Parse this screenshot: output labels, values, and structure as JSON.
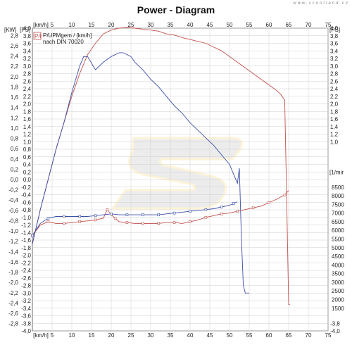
{
  "title": "Power - Diagram",
  "watermark": "www.scootland.cz",
  "chart_data": {
    "type": "line",
    "title": "Power - Diagram",
    "xlabel": "[km/h]",
    "x_unit_top": "[km/h]",
    "y_left_unit_kw": "[KW]",
    "y_left_unit_ps": "[PS]",
    "y_right_unit_ps": "[PS]",
    "y_right_unit_rpm": "[1/mir",
    "legend": [
      "P/UPMgem / [km/h]",
      "nach DIN 70020"
    ],
    "legend_badge": "P4",
    "xlim": [
      0,
      75
    ],
    "x_ticks": [
      5,
      10,
      15,
      20,
      25,
      30,
      35,
      40,
      45,
      50,
      55,
      60,
      65,
      70,
      75
    ],
    "y_ps_lim": [
      -4.0,
      4.0
    ],
    "y_ps_ticks": [
      "4,0",
      "3,8",
      "3,6",
      "3,4",
      "3,2",
      "3,0",
      "2,8",
      "2,6",
      "2,4",
      "2,2",
      "2,0",
      "1,8",
      "1,6",
      "1,4",
      "1,2",
      "1,0",
      "0,8",
      "0,6",
      "0,4",
      "0,2",
      "0,0",
      "-0,2",
      "-0,4",
      "-0,6",
      "-0,8",
      "-1,0",
      "-1,2",
      "-1,4",
      "-1,6",
      "-1,8",
      "-2,0",
      "-2,2",
      "-2,4",
      "-2,6",
      "-2,8",
      "-3,0",
      "-3,2",
      "-3,4",
      "-3,6",
      "-3,8",
      "-4,0"
    ],
    "y_kw_ticks": [
      "2,8",
      "2,6",
      "2,4",
      "2,2",
      "2,0",
      "1,8",
      "1,6",
      "1,4",
      "1,2",
      "1,0",
      "0,8",
      "0,6",
      "0,4",
      "0,2",
      "0,0",
      "-0,2",
      "-0,4",
      "-0,6",
      "-0,8",
      "-1,0",
      "-1,2",
      "-1,4",
      "-1,6",
      "-1,8",
      "-2,0",
      "-2,2",
      "-2,4",
      "-2,6",
      "-2,8"
    ],
    "y_right_ps_ticks": [
      "4,0",
      "3,8",
      "3,6",
      "3,4",
      "3,2",
      "3,0",
      "2,8",
      "2,6",
      "2,4",
      "2,2",
      "2,0",
      "1,8",
      "1,6",
      "1,4",
      "1,2",
      "1,0"
    ],
    "y_right_ps_bottom": "-3,8",
    "y_right_ps_bottom2": "-4,0",
    "y_rpm_ticks": [
      8500,
      8000,
      7500,
      7000,
      6500,
      6000,
      5500,
      5000,
      4500,
      4000,
      3500,
      3000,
      2500,
      2000,
      1500
    ],
    "series": [
      {
        "name": "red power",
        "color": "#c0504d",
        "axis": "ps",
        "x": [
          0,
          2,
          4,
          6,
          8,
          10,
          12,
          14,
          16,
          18,
          20,
          22,
          24,
          26,
          28,
          30,
          32,
          34,
          36,
          38,
          40,
          42,
          44,
          46,
          48,
          50,
          52,
          54,
          56,
          58,
          60,
          62,
          63,
          64,
          64.5,
          65,
          65.3
        ],
        "y": [
          -1.7,
          -0.8,
          0.0,
          0.8,
          1.5,
          2.2,
          2.8,
          3.3,
          3.6,
          3.85,
          3.95,
          4.0,
          4.02,
          4.0,
          3.97,
          3.95,
          3.92,
          3.85,
          3.82,
          3.75,
          3.7,
          3.65,
          3.6,
          3.5,
          3.4,
          3.25,
          3.1,
          2.95,
          2.8,
          2.65,
          2.5,
          2.35,
          2.25,
          2.1,
          -0.5,
          -3.3,
          -3.3
        ]
      },
      {
        "name": "blue power",
        "color": "#3b4fa8",
        "axis": "ps",
        "x": [
          0,
          2,
          4,
          6,
          8,
          10,
          12,
          13,
          14,
          16,
          18,
          20,
          22,
          23,
          24,
          25,
          26,
          28,
          30,
          32,
          34,
          36,
          38,
          40,
          42,
          44,
          46,
          48,
          50,
          51,
          52,
          52.5,
          53,
          53.5,
          54,
          55
        ],
        "y": [
          -1.7,
          -0.8,
          0.0,
          0.8,
          1.5,
          2.3,
          3.0,
          3.25,
          3.25,
          2.9,
          3.1,
          3.25,
          3.35,
          3.35,
          3.3,
          3.25,
          3.1,
          2.9,
          2.65,
          2.45,
          2.2,
          1.95,
          1.75,
          1.5,
          1.3,
          1.1,
          0.9,
          0.65,
          0.4,
          0.15,
          -0.1,
          0.3,
          -1.5,
          -2.8,
          -3.0,
          -3.0
        ]
      },
      {
        "name": "red rpm",
        "color": "#c0504d",
        "axis": "rpm",
        "x": [
          0,
          2,
          4,
          6,
          8,
          10,
          12,
          14,
          16,
          18,
          19,
          20,
          21,
          22,
          24,
          26,
          28,
          30,
          32,
          34,
          36,
          38,
          40,
          42,
          44,
          46,
          48,
          50,
          52,
          54,
          56,
          58,
          60,
          62,
          64,
          65
        ],
        "y": [
          5700,
          6300,
          6500,
          6400,
          6400,
          6450,
          6500,
          6550,
          6600,
          6700,
          7200,
          6900,
          6700,
          6500,
          6450,
          6400,
          6400,
          6400,
          6400,
          6450,
          6450,
          6400,
          6500,
          6600,
          6750,
          6850,
          6950,
          7000,
          7100,
          7200,
          7300,
          7400,
          7600,
          7800,
          8050,
          8300
        ]
      },
      {
        "name": "blue rpm",
        "color": "#3b4fa8",
        "axis": "rpm",
        "x": [
          0,
          2,
          4,
          6,
          8,
          10,
          12,
          14,
          16,
          18,
          20,
          22,
          24,
          26,
          28,
          30,
          32,
          34,
          36,
          38,
          40,
          42,
          44,
          46,
          48,
          50,
          51,
          52
        ],
        "y": [
          5700,
          6400,
          6700,
          6800,
          6800,
          6800,
          6800,
          6800,
          6850,
          6900,
          6950,
          6900,
          6900,
          6900,
          6900,
          6900,
          6900,
          6950,
          7000,
          7050,
          7100,
          7150,
          7200,
          7250,
          7350,
          7450,
          7550,
          7650
        ]
      }
    ]
  }
}
